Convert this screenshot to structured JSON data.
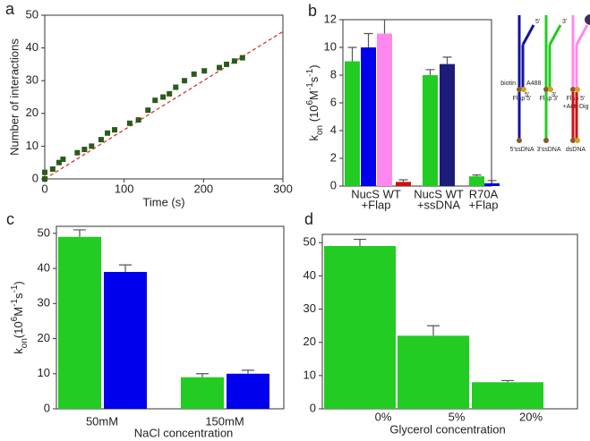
{
  "chart_data": [
    {
      "type": "scatter",
      "panel": "a",
      "xlabel": "Time  (s)",
      "ylabel": "Number of interactions",
      "xlim": [
        0,
        300
      ],
      "ylim": [
        0,
        50
      ],
      "xticks": [
        0,
        100,
        200,
        300
      ],
      "yticks": [
        0,
        10,
        20,
        30,
        40,
        50
      ],
      "x": [
        0,
        0,
        10,
        18,
        23,
        41,
        50,
        59,
        71,
        79,
        88,
        107,
        118,
        130,
        139,
        149,
        157,
        165,
        176,
        188,
        201,
        220,
        229,
        239,
        249
      ],
      "values": [
        0,
        2,
        3,
        5,
        6,
        8,
        9,
        10,
        12,
        14,
        15,
        17,
        18,
        21,
        24,
        25,
        26,
        28,
        30,
        32,
        33,
        34,
        35,
        36,
        37
      ],
      "color": "#2d5a1b",
      "fit": {
        "x": [
          0,
          300
        ],
        "values": [
          0,
          45
        ],
        "color": "#e0302a"
      }
    },
    {
      "type": "bar",
      "panel": "b",
      "ylabel": [
        {
          "text": "k"
        },
        {
          "text": "on",
          "shift": "sub"
        },
        {
          "text": " (10"
        },
        {
          "text": "6",
          "shift": "super"
        },
        {
          "text": "M"
        },
        {
          "text": "-1",
          "shift": "super"
        },
        {
          "text": "s"
        },
        {
          "text": "-1",
          "shift": "super"
        },
        {
          "text": ")"
        }
      ],
      "ylim": [
        0,
        12
      ],
      "yticks": [
        0,
        2,
        4,
        6,
        8,
        10,
        12
      ],
      "categories": [
        [
          "NucS WT",
          "+Flap"
        ],
        [
          "NucS WT",
          "+ssDNA"
        ],
        [
          "R70A",
          "+Flap"
        ]
      ],
      "bars": [
        {
          "category": 0,
          "value": 9,
          "error": 1,
          "color": "#22cc22"
        },
        {
          "category": 0,
          "value": 10,
          "error": 1,
          "color": "#0000ee"
        },
        {
          "category": 0,
          "value": 11,
          "error": 1,
          "color": "#ff88ee"
        },
        {
          "category": 0,
          "value": 0.3,
          "error": 0.15,
          "color": "#cc1111"
        },
        {
          "category": 1,
          "value": 8,
          "error": 0.4,
          "color": "#22cc22"
        },
        {
          "category": 1,
          "value": 8.8,
          "error": 0.5,
          "color": "#1c1c7a"
        },
        {
          "category": 2,
          "value": 0.7,
          "error": 0.1,
          "color": "#22cc22"
        },
        {
          "category": 2,
          "value": 0.2,
          "error": 0.2,
          "color": "#0000ee"
        }
      ],
      "diagrams": [
        {
          "label": [
            "Flap 5'"
          ],
          "end": "5'",
          "color": "#1414a0",
          "flap": "left",
          "base": [
            "biotin",
            "A488"
          ]
        },
        {
          "label": [
            "Flap 3'"
          ],
          "end": "3'",
          "color": "#22cc22",
          "flap": "right"
        },
        {
          "label": [
            "Flap 5'",
            "+Anti-Dig"
          ],
          "end": "5'",
          "color": "#ff88ee",
          "flap": "left",
          "dig": "#3a2f5a"
        },
        {
          "label": [
            "5'ssDNA"
          ],
          "end": "5'",
          "color": "#1414a0"
        },
        {
          "label": [
            "3'ssDNA"
          ],
          "end": "3'",
          "color": "#22cc22"
        },
        {
          "label": [
            "dsDNA"
          ],
          "color": "#cc1111"
        }
      ]
    },
    {
      "type": "bar",
      "panel": "c",
      "xlabel": "NaCl concentration",
      "ylabel": [
        {
          "text": "k"
        },
        {
          "text": "on",
          "shift": "sub"
        },
        {
          "text": "(10"
        },
        {
          "text": "6",
          "shift": "super"
        },
        {
          "text": "M"
        },
        {
          "text": "-1",
          "shift": "super"
        },
        {
          "text": "s"
        },
        {
          "text": "-1",
          "shift": "super"
        },
        {
          "text": ")"
        }
      ],
      "ylim": [
        0,
        52
      ],
      "yticks": [
        0,
        10,
        20,
        30,
        40,
        50
      ],
      "categories": [
        "50mM",
        "150mM"
      ],
      "series": [
        {
          "color": "#22cc22",
          "values": [
            49,
            9
          ],
          "errors": [
            2,
            1
          ]
        },
        {
          "color": "#0000ee",
          "values": [
            39,
            10
          ],
          "errors": [
            2,
            1
          ]
        }
      ]
    },
    {
      "type": "bar",
      "panel": "d",
      "xlabel": "Glycerol concentration",
      "ylim": [
        0,
        52.5
      ],
      "yticks": [
        0,
        10,
        20,
        30,
        40,
        50
      ],
      "categories": [
        "0%",
        "5%",
        "20%"
      ],
      "values": [
        49,
        22,
        8
      ],
      "errors": [
        2,
        3,
        0.5
      ],
      "color": "#22cc22"
    }
  ]
}
